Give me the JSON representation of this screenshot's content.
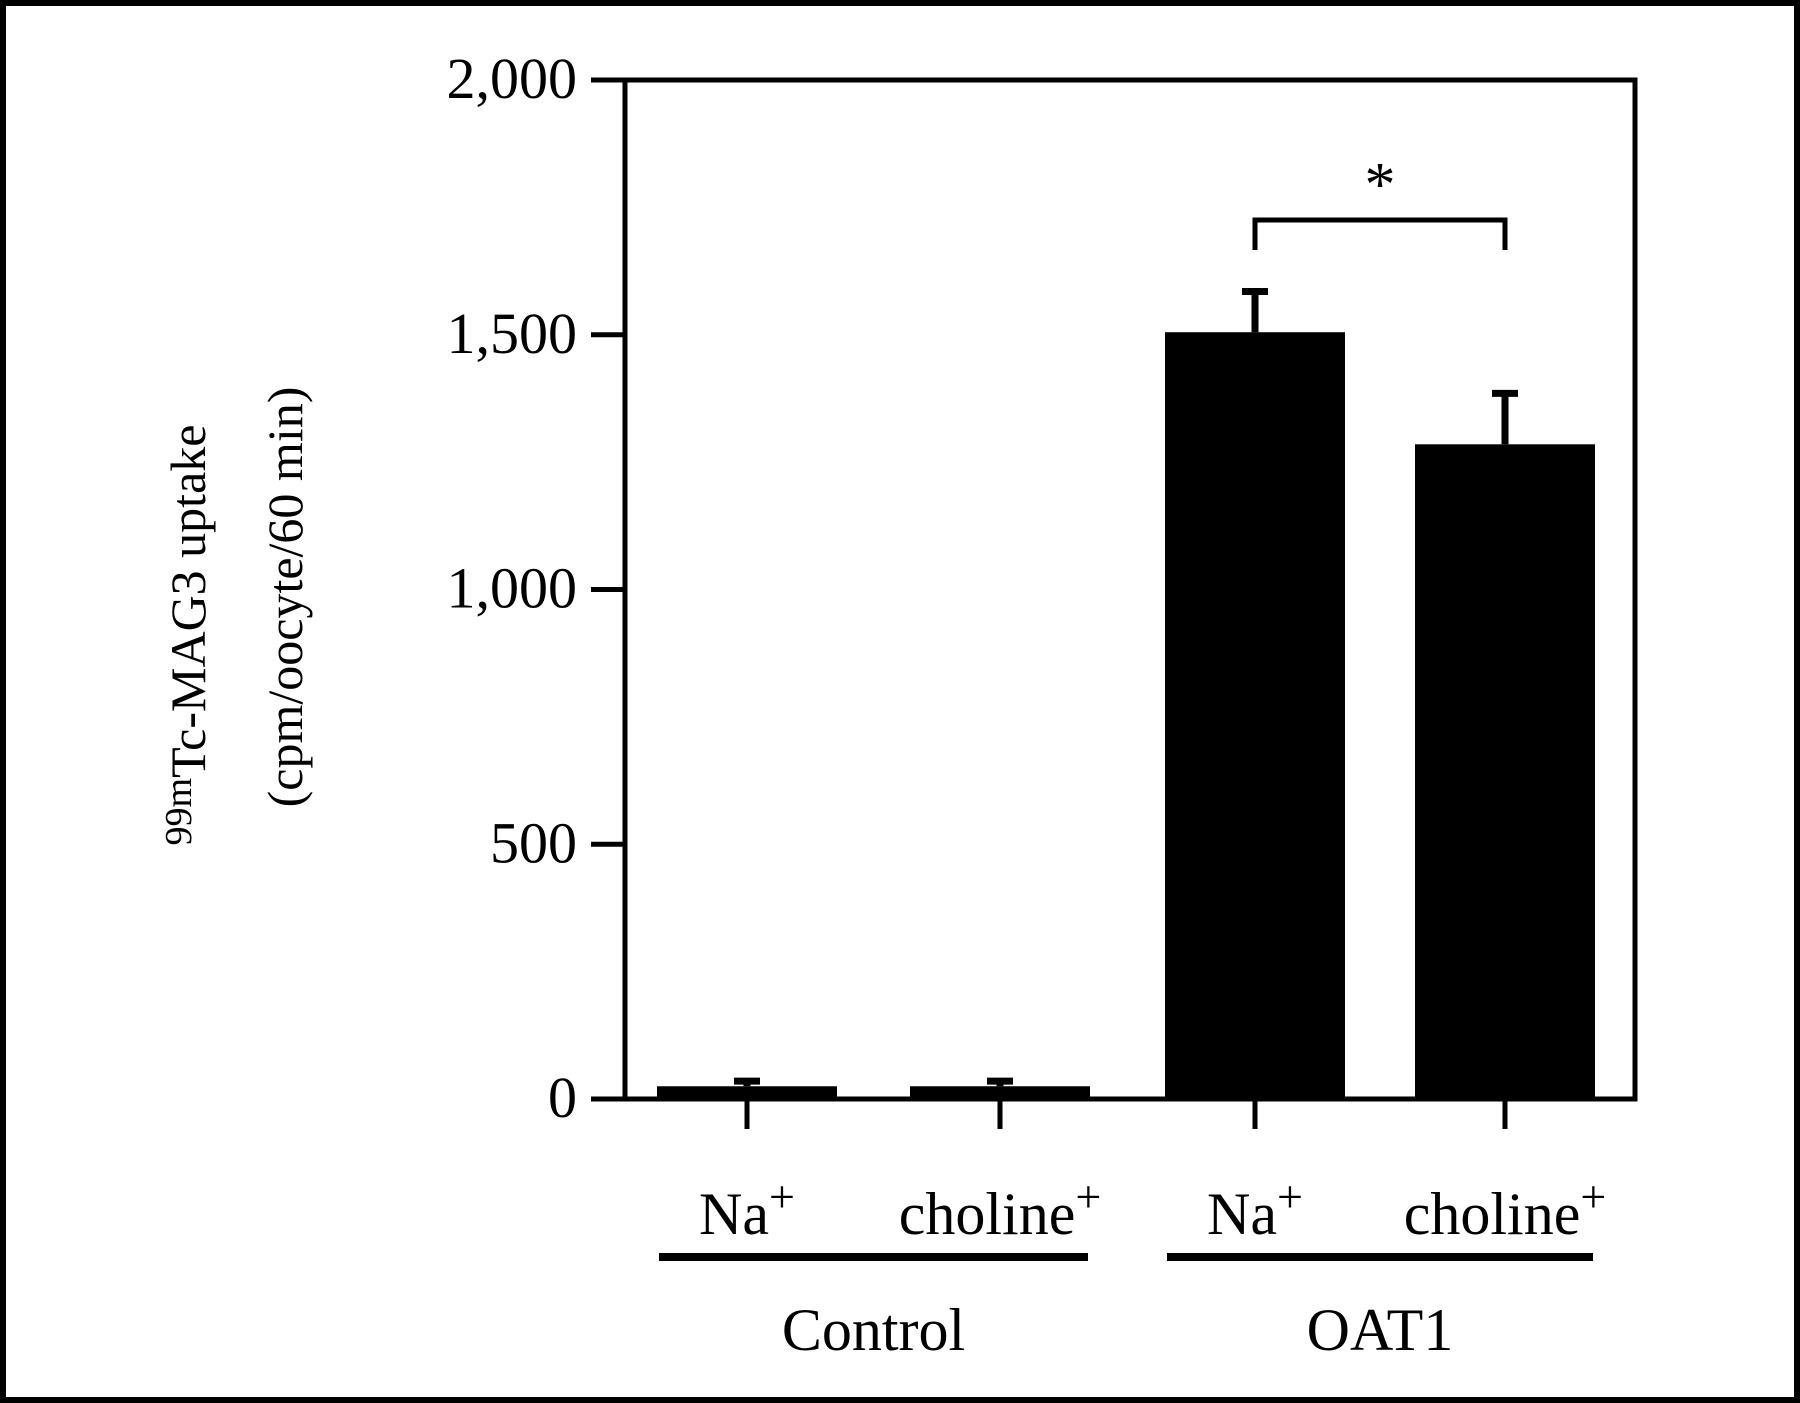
{
  "chart_data": {
    "type": "bar",
    "title": "",
    "ylabel_prefix": "99m",
    "ylabel_line1": "Tc-MAG3 uptake",
    "ylabel_line2": "(cpm/oocyte/60 min)",
    "ylim": [
      0,
      2000
    ],
    "yticks": [
      {
        "value": 0,
        "label": "0"
      },
      {
        "value": 500,
        "label": "500"
      },
      {
        "value": 1000,
        "label": "1,000"
      },
      {
        "value": 1500,
        "label": "1,500"
      },
      {
        "value": 2000,
        "label": "2,000"
      }
    ],
    "bars": [
      {
        "group": "Control",
        "condition": "Na",
        "condition_sup": "+",
        "value": 25,
        "error": 10
      },
      {
        "group": "Control",
        "condition": "choline",
        "condition_sup": "+",
        "value": 25,
        "error": 10
      },
      {
        "group": "OAT1",
        "condition": "Na",
        "condition_sup": "+",
        "value": 1505,
        "error": 80
      },
      {
        "group": "OAT1",
        "condition": "choline",
        "condition_sup": "+",
        "value": 1285,
        "error": 100
      }
    ],
    "groups": [
      "Control",
      "OAT1"
    ],
    "significance": {
      "between": [
        2,
        3
      ],
      "label": "*"
    },
    "colors": {
      "bar": "#000000",
      "background": "#ffffff"
    }
  }
}
